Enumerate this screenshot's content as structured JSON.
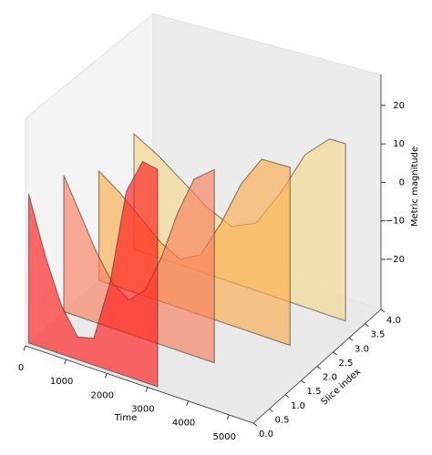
{
  "chart_data": {
    "type": "polygon3d",
    "xlabel": "Time",
    "ylabel": "Slice index",
    "zlabel": "Metric magnitude",
    "xlim": [
      0,
      5600
    ],
    "xticks": [
      0,
      1000,
      2000,
      3000,
      4000,
      5000
    ],
    "ylim": [
      0,
      4
    ],
    "yticks": [
      {
        "value": 0,
        "label": "0.0"
      },
      0.5,
      {
        "value": 1,
        "label": "1.0"
      },
      1.5,
      {
        "value": 2,
        "label": "2.0"
      },
      2.5,
      {
        "value": 3,
        "label": "3.0"
      },
      3.5,
      {
        "value": 4,
        "label": "4.0"
      }
    ],
    "zlim": [
      -33,
      28
    ],
    "zticks": [
      {
        "value": -20,
        "label": "−20"
      },
      {
        "value": -10,
        "label": "−10"
      },
      0,
      10,
      20
    ],
    "series": [
      {
        "slice": 0.1,
        "color": "#ff1a1a",
        "x": [
          0,
          400,
          800,
          1200,
          1600,
          2000,
          2400,
          2800,
          3170
        ],
        "values": [
          7,
          -8,
          -20,
          -27,
          -26,
          -10,
          15,
          24,
          23
        ]
      },
      {
        "slice": 1.2,
        "color": "#f7805e",
        "x": [
          0,
          400,
          800,
          1200,
          1600,
          2000,
          2400,
          2800,
          3200,
          3700
        ],
        "values": [
          4,
          -5,
          -14,
          -21,
          -24,
          -20,
          -10,
          3,
          13,
          17
        ]
      },
      {
        "slice": 2.3,
        "color": "#fbad4e",
        "x": [
          0,
          500,
          1000,
          1500,
          2000,
          2500,
          3000,
          3500,
          4000,
          4700
        ],
        "values": [
          -3,
          -7,
          -12,
          -17,
          -20,
          -17,
          -7,
          5,
          13,
          13
        ]
      },
      {
        "slice": 3.4,
        "color": "#f6d98e",
        "x": [
          0,
          600,
          1200,
          1800,
          2400,
          3000,
          3600,
          4200,
          4800,
          5200
        ],
        "values": [
          -1,
          -5,
          -10,
          -15,
          -18,
          -15,
          -5,
          7,
          13,
          13
        ]
      }
    ]
  }
}
